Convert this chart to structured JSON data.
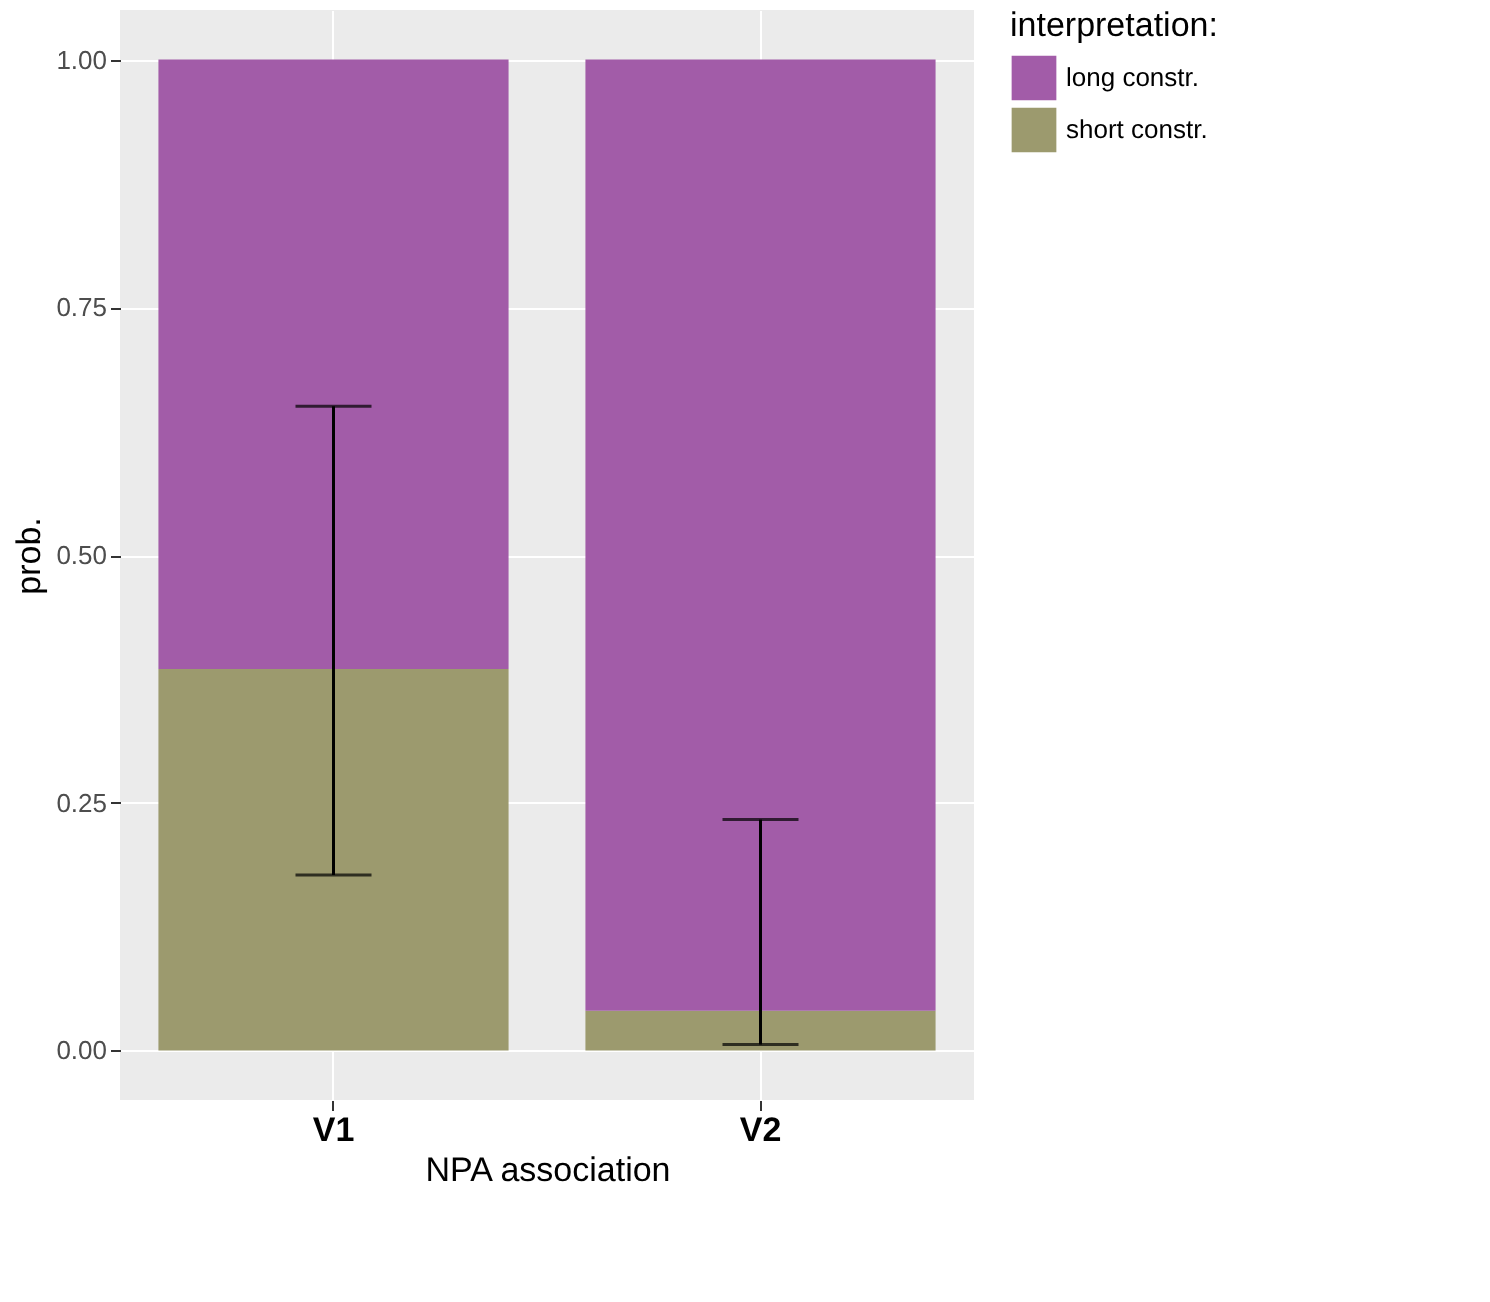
{
  "chart_data": {
    "type": "bar",
    "xlabel": "NPA association",
    "ylabel": "prob.",
    "legend_title": "interpretation:",
    "categories": [
      "V1",
      "V2"
    ],
    "stacked": true,
    "series": [
      {
        "name": "short constr.",
        "color": "#9c9a6e",
        "values": [
          0.385,
          0.04
        ],
        "errors": [
          [
            0.177,
            0.65
          ],
          [
            0.006,
            0.233
          ]
        ]
      },
      {
        "name": "long constr.",
        "color": "#a25ca8",
        "values": [
          0.615,
          0.96
        ]
      }
    ],
    "ylim": [
      -0.05,
      1.05
    ],
    "yticks": [
      {
        "value": 0,
        "label": "0.00"
      },
      {
        "value": 0.25,
        "label": "0.25"
      },
      {
        "value": 0.5,
        "label": "0.50"
      },
      {
        "value": 0.75,
        "label": "0.75"
      },
      {
        "value": 1,
        "label": "1.00"
      }
    ],
    "grid": true,
    "legend": "right"
  }
}
